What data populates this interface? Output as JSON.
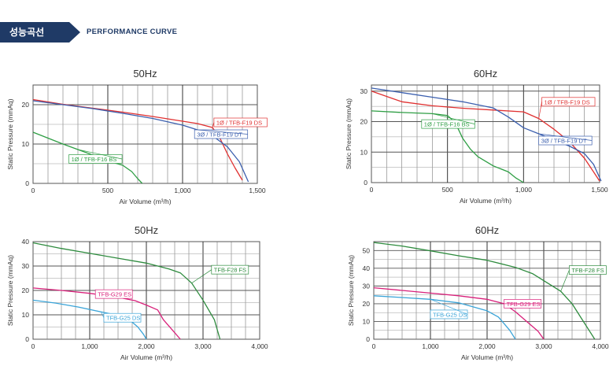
{
  "header": {
    "title": "성능곡선",
    "subtitle": "PERFORMANCE CURVE"
  },
  "charts": [
    {
      "title": "50Hz"
    },
    {
      "title": "60Hz"
    },
    {
      "title": "50Hz"
    },
    {
      "title": "60Hz"
    }
  ],
  "chart_data": [
    {
      "type": "line",
      "title": "50Hz",
      "xlabel": "Air Volume (m³/h)",
      "ylabel": "Static Pressure (mmAq)",
      "xlim": [
        0,
        1500
      ],
      "ylim": [
        0,
        25
      ],
      "xticks": [
        0,
        500,
        1000,
        1500
      ],
      "xtick_labels": [
        "0",
        "500",
        "1,000",
        "1,500"
      ],
      "yticks": [
        0,
        10,
        20
      ],
      "ytick_labels": [
        "0",
        "10",
        "20"
      ],
      "grid": true,
      "series": [
        {
          "name": "1Ø / TFB-F19 DS",
          "color": "#e03030",
          "points": [
            [
              0,
              21.3
            ],
            [
              200,
              20.1
            ],
            [
              400,
              19.1
            ],
            [
              600,
              18.1
            ],
            [
              800,
              17.0
            ],
            [
              1000,
              15.8
            ],
            [
              1100,
              15.2
            ],
            [
              1200,
              14.2
            ],
            [
              1250,
              11.5
            ],
            [
              1300,
              7.5
            ],
            [
              1350,
              4.0
            ],
            [
              1400,
              0.8
            ]
          ]
        },
        {
          "name": "3Ø / TFB-F19 DT",
          "color": "#3b5fae",
          "points": [
            [
              0,
              21.0
            ],
            [
              200,
              20.0
            ],
            [
              400,
              19.0
            ],
            [
              600,
              17.8
            ],
            [
              800,
              16.5
            ],
            [
              1000,
              14.8
            ],
            [
              1100,
              13.6
            ],
            [
              1200,
              12.1
            ],
            [
              1300,
              9.3
            ],
            [
              1380,
              5.5
            ],
            [
              1440,
              0.4
            ]
          ]
        },
        {
          "name": "1Ø / TFB-F16 BS",
          "color": "#2e9e44",
          "points": [
            [
              0,
              13.0
            ],
            [
              100,
              11.5
            ],
            [
              200,
              10.0
            ],
            [
              300,
              8.6
            ],
            [
              400,
              7.2
            ],
            [
              500,
              5.7
            ],
            [
              600,
              4.6
            ],
            [
              660,
              3.0
            ],
            [
              700,
              1.2
            ],
            [
              730,
              0
            ]
          ]
        }
      ]
    },
    {
      "type": "line",
      "title": "60Hz",
      "xlabel": "Air Volume (m³/h)",
      "ylabel": "Static Pressure (mmAq)",
      "xlim": [
        0,
        1500
      ],
      "ylim": [
        0,
        32
      ],
      "xticks": [
        0,
        500,
        1000,
        1500
      ],
      "xtick_labels": [
        "0",
        "500",
        "1,000",
        "1,500"
      ],
      "yticks": [
        0,
        10,
        20,
        30
      ],
      "ytick_labels": [
        "0",
        "10",
        "20",
        "30"
      ],
      "grid": true,
      "series": [
        {
          "name": "1Ø / TFB-F19 DS",
          "color": "#e03030",
          "points": [
            [
              0,
              30.0
            ],
            [
              200,
              26.5
            ],
            [
              400,
              25.2
            ],
            [
              600,
              24.4
            ],
            [
              800,
              23.8
            ],
            [
              1000,
              23.2
            ],
            [
              1100,
              21.0
            ],
            [
              1200,
              17.5
            ],
            [
              1300,
              13.5
            ],
            [
              1400,
              8.0
            ],
            [
              1460,
              3.5
            ],
            [
              1500,
              0.5
            ]
          ]
        },
        {
          "name": "3Ø / TFB-F19 DT",
          "color": "#3b5fae",
          "points": [
            [
              0,
              31.0
            ],
            [
              200,
              29.5
            ],
            [
              400,
              28.0
            ],
            [
              600,
              26.5
            ],
            [
              800,
              24.5
            ],
            [
              900,
              21.5
            ],
            [
              1000,
              18.0
            ],
            [
              1100,
              16.0
            ],
            [
              1200,
              14.0
            ],
            [
              1300,
              12.0
            ],
            [
              1400,
              9.5
            ],
            [
              1460,
              6.0
            ],
            [
              1510,
              0.5
            ]
          ]
        },
        {
          "name": "1Ø / TFB-F16 BS",
          "color": "#2e9e44",
          "points": [
            [
              0,
              23.5
            ],
            [
              200,
              23.0
            ],
            [
              400,
              22.6
            ],
            [
              500,
              22.0
            ],
            [
              550,
              19.8
            ],
            [
              600,
              14.5
            ],
            [
              650,
              11.0
            ],
            [
              700,
              8.5
            ],
            [
              800,
              5.5
            ],
            [
              900,
              3.5
            ],
            [
              950,
              1.5
            ],
            [
              1000,
              0
            ]
          ]
        }
      ]
    },
    {
      "type": "line",
      "title": "50Hz",
      "xlabel": "Air Volume (m³/h)",
      "ylabel": "Static Pressure (mmAq)",
      "xlim": [
        0,
        4000
      ],
      "ylim": [
        0,
        40
      ],
      "xticks": [
        0,
        1000,
        2000,
        3000,
        4000
      ],
      "xtick_labels": [
        "0",
        "1,000",
        "2,000",
        "3,000",
        "4,000"
      ],
      "yticks": [
        0,
        10,
        20,
        30,
        40
      ],
      "ytick_labels": [
        "0",
        "10",
        "20",
        "30",
        "40"
      ],
      "grid": true,
      "series": [
        {
          "name": "TFB-F28 FS",
          "color": "#2e8b3e",
          "points": [
            [
              0,
              39.5
            ],
            [
              500,
              37.2
            ],
            [
              1000,
              35.2
            ],
            [
              1500,
              33.2
            ],
            [
              2000,
              31.2
            ],
            [
              2400,
              28.8
            ],
            [
              2600,
              27.2
            ],
            [
              2800,
              23.0
            ],
            [
              3000,
              16.0
            ],
            [
              3200,
              8.0
            ],
            [
              3300,
              0
            ]
          ]
        },
        {
          "name": "TFB-G29 ES",
          "color": "#d8207a",
          "points": [
            [
              0,
              21.0
            ],
            [
              500,
              20.0
            ],
            [
              1000,
              18.8
            ],
            [
              1500,
              17.2
            ],
            [
              1800,
              15.8
            ],
            [
              2000,
              14.0
            ],
            [
              2200,
              12.0
            ],
            [
              2300,
              8.0
            ],
            [
              2450,
              4.0
            ],
            [
              2600,
              0
            ]
          ]
        },
        {
          "name": "TFB-G25 DS",
          "color": "#3aa4d8",
          "points": [
            [
              0,
              16.0
            ],
            [
              400,
              14.8
            ],
            [
              800,
              13.2
            ],
            [
              1200,
              11.2
            ],
            [
              1500,
              9.8
            ],
            [
              1700,
              8.0
            ],
            [
              1850,
              5.0
            ],
            [
              1950,
              2.0
            ],
            [
              2000,
              0
            ]
          ]
        }
      ]
    },
    {
      "type": "line",
      "title": "60Hz",
      "xlabel": "Air Volume (m³/h)",
      "ylabel": "Static Pressure (mmAq)",
      "xlim": [
        0,
        4000
      ],
      "ylim": [
        0,
        55
      ],
      "xticks": [
        0,
        1000,
        2000,
        3000,
        4000
      ],
      "xtick_labels": [
        "0",
        "1,000",
        "2,000",
        "3,000",
        "4,000"
      ],
      "yticks": [
        0,
        10,
        20,
        30,
        40,
        50
      ],
      "ytick_labels": [
        "0",
        "10",
        "20",
        "30",
        "40",
        "50"
      ],
      "grid": true,
      "series": [
        {
          "name": "TFB-F28 FS",
          "color": "#2e8b3e",
          "points": [
            [
              0,
              54.5
            ],
            [
              500,
              52.5
            ],
            [
              1000,
              49.8
            ],
            [
              1500,
              47.0
            ],
            [
              2000,
              44.5
            ],
            [
              2500,
              40.5
            ],
            [
              2800,
              37.0
            ],
            [
              3000,
              33.0
            ],
            [
              3300,
              27.0
            ],
            [
              3500,
              20.0
            ],
            [
              3700,
              10.0
            ],
            [
              3800,
              5.0
            ],
            [
              3900,
              0
            ]
          ]
        },
        {
          "name": "TFB-G29 ES",
          "color": "#d8207a",
          "points": [
            [
              0,
              29.0
            ],
            [
              500,
              27.5
            ],
            [
              1000,
              26.0
            ],
            [
              1500,
              24.5
            ],
            [
              2000,
              22.5
            ],
            [
              2300,
              20.0
            ],
            [
              2500,
              15.5
            ],
            [
              2700,
              10.0
            ],
            [
              2900,
              4.5
            ],
            [
              3000,
              0
            ]
          ]
        },
        {
          "name": "TFB-G25 DS",
          "color": "#3aa4d8",
          "points": [
            [
              0,
              24.5
            ],
            [
              500,
              23.5
            ],
            [
              1000,
              22.5
            ],
            [
              1500,
              20.5
            ],
            [
              2000,
              16.0
            ],
            [
              2200,
              12.5
            ],
            [
              2400,
              5.0
            ],
            [
              2500,
              0
            ]
          ]
        }
      ]
    }
  ]
}
